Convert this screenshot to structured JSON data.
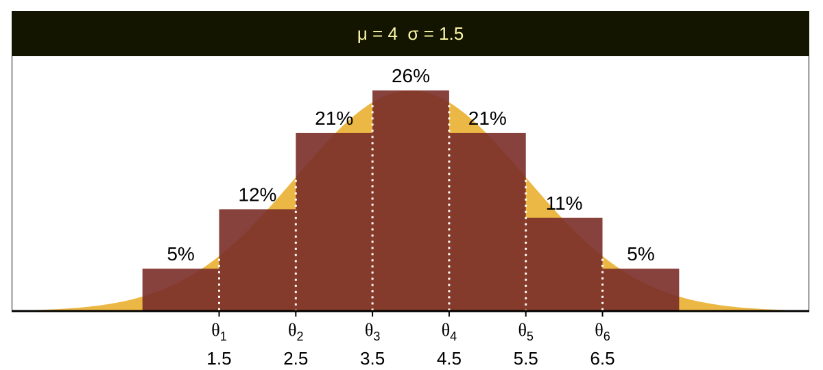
{
  "panel": {
    "strip_title": "μ = 4  σ = 1.5"
  },
  "colors": {
    "curve_fill": "#ecb845",
    "bar_fill": "#7a2e28",
    "strip_bg": "#141500",
    "strip_text": "#fbf7a8",
    "threshold_line": "#ffffff"
  },
  "chart_data": {
    "type": "bar",
    "title": "μ = 4  σ = 1.5",
    "distribution": {
      "mean": 4,
      "sd": 1.5,
      "xlim": [
        -1,
        9
      ]
    },
    "x": [
      1,
      2,
      3,
      4,
      5,
      6,
      7
    ],
    "values": [
      5,
      12,
      21,
      26,
      21,
      11,
      5
    ],
    "data_labels": [
      "5%",
      "12%",
      "21%",
      "26%",
      "21%",
      "11%",
      "5%"
    ],
    "thresholds": [
      {
        "symbol": "θ",
        "sub": "1",
        "value": "1.5"
      },
      {
        "symbol": "θ",
        "sub": "2",
        "value": "2.5"
      },
      {
        "symbol": "θ",
        "sub": "3",
        "value": "3.5"
      },
      {
        "symbol": "θ",
        "sub": "4",
        "value": "4.5"
      },
      {
        "symbol": "θ",
        "sub": "5",
        "value": "5.5"
      },
      {
        "symbol": "θ",
        "sub": "6",
        "value": "6.5"
      }
    ],
    "grid": false,
    "xlabel": "",
    "ylabel": ""
  }
}
